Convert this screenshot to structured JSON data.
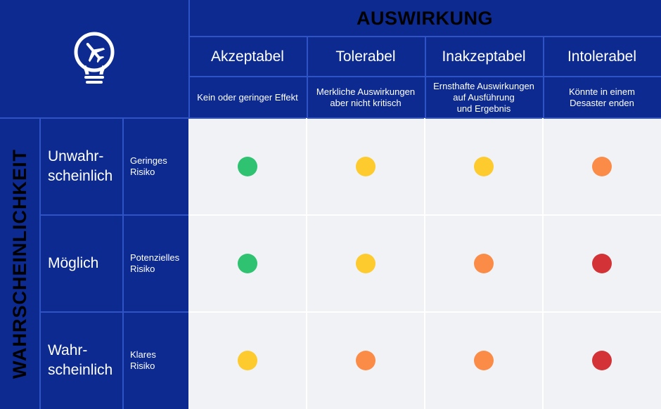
{
  "header": {
    "title": "AUSWIRKUNG",
    "icon": "plane-lightbulb-icon"
  },
  "side_label": "WAHRSCHEINLICHKEIT",
  "columns": [
    {
      "label": "Akzeptabel",
      "description": "Kein oder geringer Effekt"
    },
    {
      "label": "Tolerabel",
      "description": "Merkliche Auswirkungen\naber nicht kritisch"
    },
    {
      "label": "Inakzeptabel",
      "description": "Ernsthafte Auswirkungen\nauf Ausführung\nund Ergebnis"
    },
    {
      "label": "Intolerabel",
      "description": "Könnte in einem\nDesaster enden"
    }
  ],
  "rows": [
    {
      "label": "Unwahr-\nscheinlich",
      "risk": "Geringes\nRisiko"
    },
    {
      "label": "Möglich",
      "risk": "Potenzielles\nRisiko"
    },
    {
      "label": "Wahr-\nscheinlich",
      "risk": "Klares\nRisiko"
    }
  ],
  "matrix": [
    [
      "green",
      "yellow",
      "yellow",
      "orange"
    ],
    [
      "green",
      "yellow",
      "orange",
      "red"
    ],
    [
      "yellow",
      "orange",
      "orange",
      "red"
    ]
  ],
  "colors": {
    "navy": "#0c2a8f",
    "green": "#2ec271",
    "yellow": "#fdcb2e",
    "orange": "#fb8c47",
    "red": "#d33236",
    "cell_bg": "#f0f2f6"
  }
}
